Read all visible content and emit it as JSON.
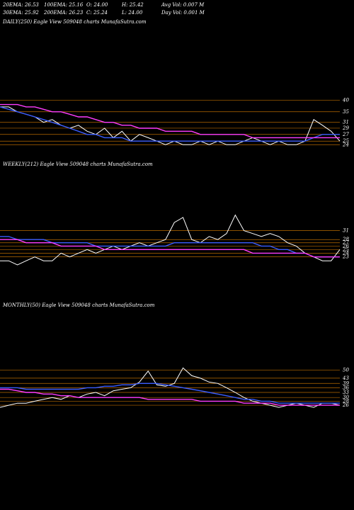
{
  "header": [
    [
      "20EMA: 26.53",
      "100EMA: 25.16",
      "O: 24.00",
      "H: 25.42",
      "Avg Vol: 0.007 M"
    ],
    [
      "30EMA: 25.92",
      "200EMA: 26.23",
      "C: 25.24",
      "L: 24.00",
      "Day Vol: 0.001 M"
    ]
  ],
  "chart_data": [
    {
      "type": "line",
      "title": "DAILY(250) Eagle  View  509048  charts MunafaSutra.com",
      "log_scale": true,
      "grid": true,
      "ylim": [
        22,
        91
      ],
      "yticks": [
        40,
        35,
        31,
        29,
        27,
        25,
        24
      ],
      "series": [
        {
          "name": "Price",
          "color": "#ffffff",
          "values": [
            37,
            37,
            35,
            34,
            33,
            31,
            32,
            30,
            29,
            30,
            28,
            27,
            29,
            26,
            28,
            25,
            27,
            26,
            25,
            24,
            25,
            24,
            24,
            25,
            24,
            25,
            24,
            24,
            25,
            26,
            25,
            24,
            25,
            24,
            24,
            25,
            32,
            30,
            28,
            25
          ]
        },
        {
          "name": "EMA",
          "color": "#3a5cff",
          "values": [
            37,
            36,
            35,
            34,
            33,
            32,
            31,
            30,
            29,
            28,
            27,
            27,
            26,
            26,
            26,
            25,
            25,
            25,
            25,
            25,
            25,
            25,
            25,
            25,
            25,
            25,
            25,
            25,
            25,
            25,
            25,
            25,
            25,
            25,
            25,
            25,
            26,
            27,
            27,
            27
          ]
        },
        {
          "name": "200EMA",
          "color": "#ff3cff",
          "values": [
            38,
            38,
            38,
            37,
            37,
            36,
            35,
            35,
            34,
            33,
            33,
            32,
            31,
            31,
            30,
            30,
            29,
            29,
            29,
            28,
            28,
            28,
            28,
            27,
            27,
            27,
            27,
            27,
            27,
            26,
            26,
            26,
            26,
            26,
            26,
            26,
            26,
            26,
            26,
            26
          ]
        }
      ]
    },
    {
      "type": "line",
      "title": "WEEKLY(212) Eagle  View  509048  charts MunafaSutra.com",
      "log_scale": true,
      "grid": true,
      "ylim": [
        20,
        57
      ],
      "yticks": [
        31,
        28,
        27,
        26,
        25,
        24,
        23
      ],
      "series": [
        {
          "name": "Price",
          "color": "#ffffff",
          "values": [
            22,
            22,
            21,
            22,
            23,
            22,
            22,
            24,
            23,
            24,
            25,
            24,
            25,
            26,
            25,
            26,
            27,
            26,
            27,
            28,
            34,
            36,
            28,
            27,
            29,
            28,
            30,
            37,
            31,
            30,
            29,
            30,
            29,
            27,
            26,
            24,
            23,
            22,
            22,
            25
          ]
        },
        {
          "name": "EMA",
          "color": "#3a5cff",
          "values": [
            29,
            29,
            28,
            28,
            28,
            28,
            27,
            27,
            27,
            27,
            27,
            26,
            26,
            26,
            26,
            26,
            26,
            26,
            26,
            26,
            27,
            27,
            27,
            27,
            27,
            27,
            27,
            27,
            27,
            27,
            26,
            26,
            25,
            25,
            24,
            24,
            23,
            23,
            23,
            23
          ]
        },
        {
          "name": "200EMA",
          "color": "#ff3cff",
          "values": [
            28,
            28,
            28,
            27,
            27,
            27,
            27,
            26,
            26,
            26,
            26,
            26,
            25,
            25,
            25,
            25,
            25,
            25,
            25,
            25,
            25,
            25,
            25,
            25,
            25,
            25,
            25,
            25,
            25,
            24,
            24,
            24,
            24,
            24,
            24,
            24,
            23,
            23,
            23,
            23
          ]
        }
      ]
    },
    {
      "type": "line",
      "title": "MONTHLY(50) Eagle  View  509048  charts MunafaSutra.com",
      "log_scale": true,
      "grid": true,
      "ylim": [
        18,
        148
      ],
      "yticks": [
        50,
        43,
        39,
        36,
        33,
        30,
        28,
        26
      ],
      "series": [
        {
          "name": "Price",
          "color": "#ffffff",
          "values": [
            25,
            26,
            27,
            27,
            28,
            29,
            30,
            29,
            31,
            30,
            32,
            33,
            31,
            34,
            35,
            36,
            40,
            49,
            38,
            37,
            39,
            52,
            45,
            43,
            40,
            39,
            36,
            33,
            30,
            28,
            27,
            26,
            25,
            26,
            27,
            26,
            25,
            27,
            27,
            26
          ]
        },
        {
          "name": "EMA",
          "color": "#3a5cff",
          "values": [
            36,
            36,
            36,
            35,
            35,
            35,
            35,
            35,
            35,
            35,
            36,
            36,
            37,
            37,
            38,
            38,
            39,
            39,
            39,
            38,
            37,
            36,
            35,
            34,
            33,
            32,
            31,
            30,
            29,
            29,
            28,
            28,
            27,
            27,
            27,
            27,
            27,
            27,
            27,
            27
          ]
        },
        {
          "name": "200EMA",
          "color": "#ff3cff",
          "values": [
            35,
            35,
            34,
            33,
            33,
            32,
            32,
            31,
            31,
            30,
            30,
            30,
            30,
            30,
            30,
            30,
            30,
            29,
            29,
            29,
            29,
            29,
            29,
            28,
            28,
            28,
            28,
            28,
            27,
            27,
            27,
            27,
            26,
            26,
            26,
            26,
            26,
            26,
            26,
            26
          ]
        }
      ]
    }
  ]
}
